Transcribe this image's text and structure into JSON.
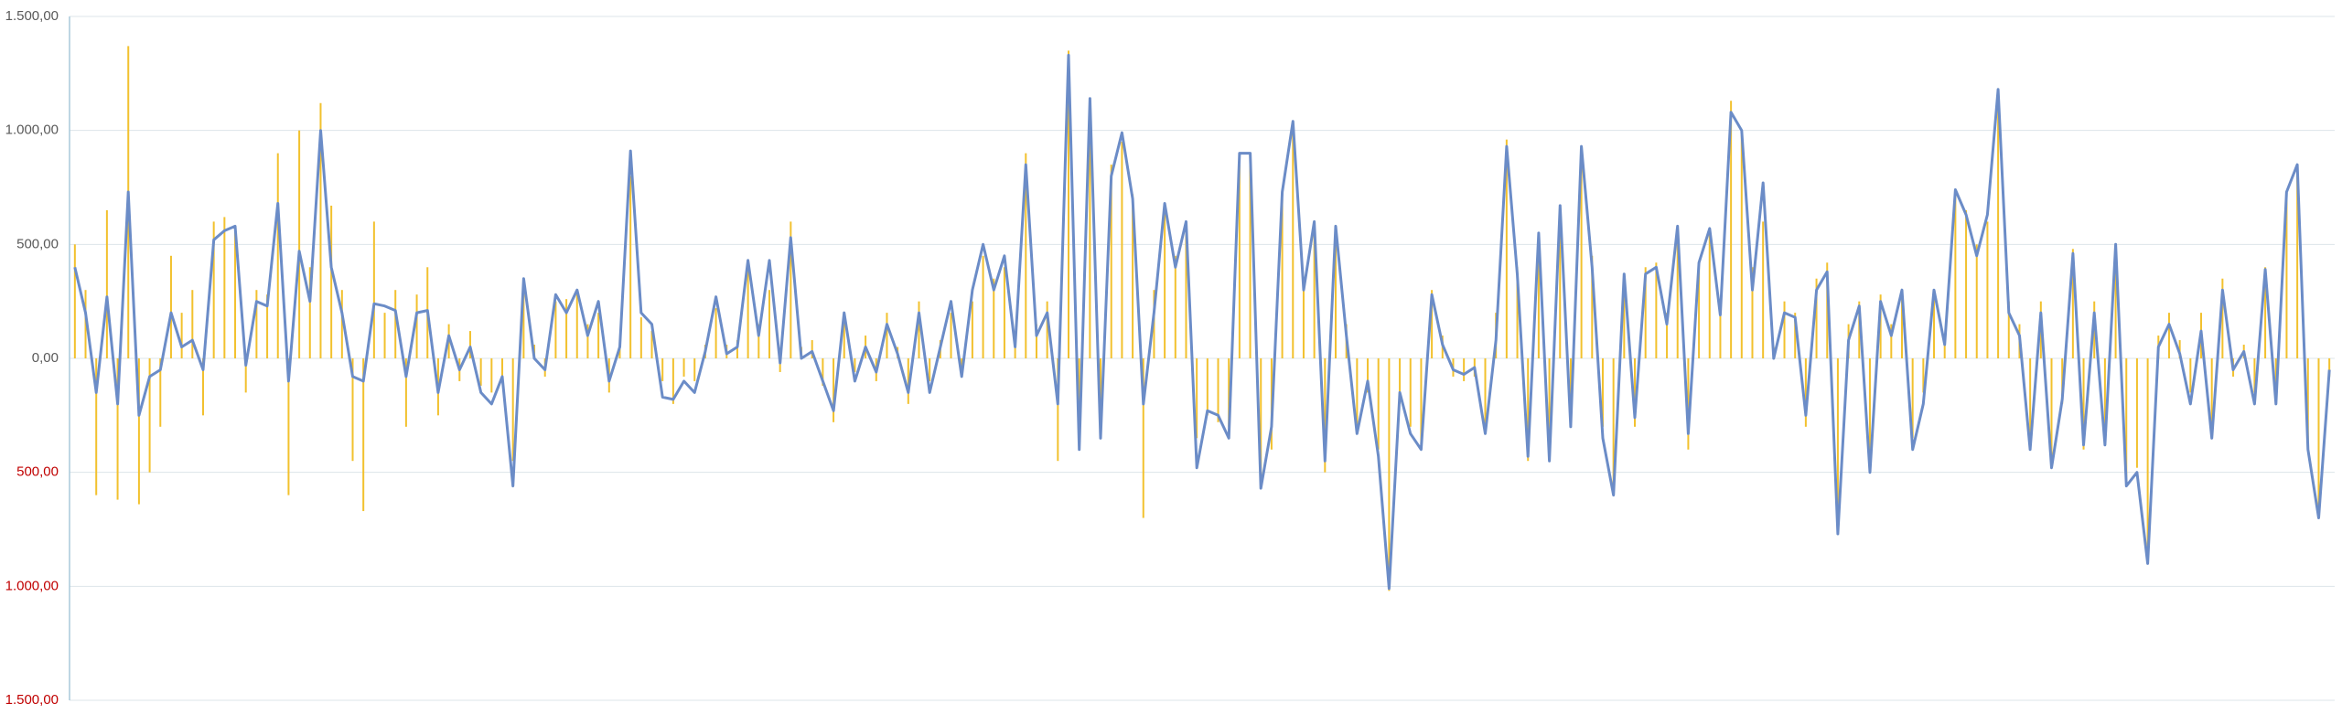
{
  "chart_data": {
    "type": "bar-line",
    "ylim": [
      -1500,
      1500
    ],
    "yticks": [
      {
        "value": 1500,
        "label": "1.500,00"
      },
      {
        "value": 1000,
        "label": "1.000,00"
      },
      {
        "value": 500,
        "label": "500,00"
      },
      {
        "value": 0,
        "label": "0,00"
      },
      {
        "value": -500,
        "label": "500,00"
      },
      {
        "value": -1000,
        "label": "1.000,00"
      },
      {
        "value": -1500,
        "label": "1.500,00"
      }
    ],
    "grid": true,
    "tick_label_color": "#595959",
    "negative_tick_label_color": "#c00000",
    "series": [
      {
        "kind": "bar",
        "color": "#f2c12e",
        "values": [
          500,
          300,
          -600,
          650,
          -620,
          1370,
          -640,
          -500,
          -300,
          450,
          200,
          300,
          -250,
          600,
          620,
          560,
          -150,
          300,
          280,
          900,
          -600,
          1000,
          400,
          1120,
          670,
          300,
          -450,
          -670,
          600,
          200,
          300,
          -300,
          280,
          400,
          -250,
          150,
          -100,
          120,
          -120,
          -150,
          -100,
          -450,
          300,
          60,
          -80,
          250,
          260,
          280,
          150,
          200,
          -150,
          80,
          800,
          180,
          120,
          -100,
          -200,
          -80,
          -100,
          60,
          220,
          60,
          80,
          400,
          150,
          300,
          -60,
          600,
          50,
          80,
          -120,
          -280,
          180,
          -60,
          100,
          -100,
          200,
          50,
          -200,
          250,
          -100,
          80,
          200,
          -60,
          250,
          450,
          350,
          400,
          100,
          900,
          150,
          250,
          -450,
          1350,
          -400,
          1100,
          -300,
          850,
          950,
          720,
          -700,
          300,
          650,
          450,
          550,
          -350,
          -250,
          -280,
          -300,
          850,
          870,
          -520,
          -400,
          700,
          1000,
          350,
          550,
          -500,
          550,
          150,
          -300,
          -150,
          -400,
          -1020,
          -200,
          -300,
          -380,
          300,
          100,
          -80,
          -100,
          -80,
          -300,
          200,
          960,
          400,
          -450,
          500,
          -400,
          650,
          -280,
          900,
          450,
          -300,
          -580,
          350,
          -300,
          400,
          420,
          200,
          550,
          -400,
          400,
          550,
          250,
          1130,
          980,
          400,
          600,
          50,
          250,
          200,
          -300,
          350,
          420,
          -700,
          150,
          250,
          -450,
          280,
          150,
          280,
          -350,
          -150,
          300,
          100,
          720,
          650,
          500,
          600,
          1150,
          250,
          150,
          -350,
          250,
          -450,
          -200,
          480,
          -400,
          250,
          -350,
          500,
          -550,
          -480,
          -850,
          100,
          200,
          80,
          -150,
          200,
          -300,
          350,
          -80,
          60,
          -150,
          400,
          -200,
          700,
          800,
          -380,
          -650,
          -80
        ]
      },
      {
        "kind": "line",
        "color": "#6b8cc7",
        "values": [
          400,
          200,
          -150,
          270,
          -200,
          730,
          -250,
          -80,
          -50,
          200,
          50,
          80,
          -50,
          520,
          560,
          580,
          -30,
          250,
          230,
          680,
          -100,
          470,
          250,
          1000,
          400,
          200,
          -80,
          -100,
          240,
          230,
          210,
          -80,
          200,
          210,
          -150,
          100,
          -50,
          50,
          -150,
          -200,
          -80,
          -560,
          350,
          0,
          -50,
          280,
          200,
          300,
          100,
          250,
          -100,
          50,
          910,
          200,
          150,
          -170,
          -180,
          -100,
          -150,
          30,
          270,
          20,
          50,
          430,
          100,
          430,
          -20,
          530,
          0,
          30,
          -100,
          -230,
          200,
          -100,
          50,
          -60,
          150,
          20,
          -150,
          200,
          -150,
          50,
          250,
          -80,
          300,
          500,
          300,
          450,
          50,
          850,
          100,
          200,
          -200,
          1330,
          -400,
          1140,
          -350,
          800,
          990,
          700,
          -200,
          200,
          680,
          400,
          600,
          -480,
          -230,
          -250,
          -350,
          900,
          900,
          -570,
          -300,
          730,
          1040,
          300,
          600,
          -450,
          580,
          100,
          -330,
          -100,
          -430,
          -1010,
          -150,
          -330,
          -400,
          280,
          60,
          -50,
          -70,
          -40,
          -330,
          80,
          930,
          370,
          -430,
          550,
          -450,
          670,
          -300,
          930,
          400,
          -350,
          -600,
          370,
          -260,
          370,
          400,
          150,
          580,
          -330,
          420,
          570,
          190,
          1080,
          1000,
          300,
          770,
          0,
          200,
          180,
          -250,
          300,
          380,
          -770,
          80,
          230,
          -500,
          250,
          100,
          300,
          -400,
          -200,
          300,
          60,
          740,
          630,
          450,
          630,
          1180,
          200,
          100,
          -400,
          200,
          -480,
          -180,
          460,
          -380,
          200,
          -380,
          500,
          -560,
          -500,
          -900,
          50,
          150,
          20,
          -200,
          120,
          -350,
          300,
          -50,
          30,
          -200,
          390,
          -200,
          730,
          850,
          -400,
          -700,
          -50
        ]
      }
    ]
  }
}
